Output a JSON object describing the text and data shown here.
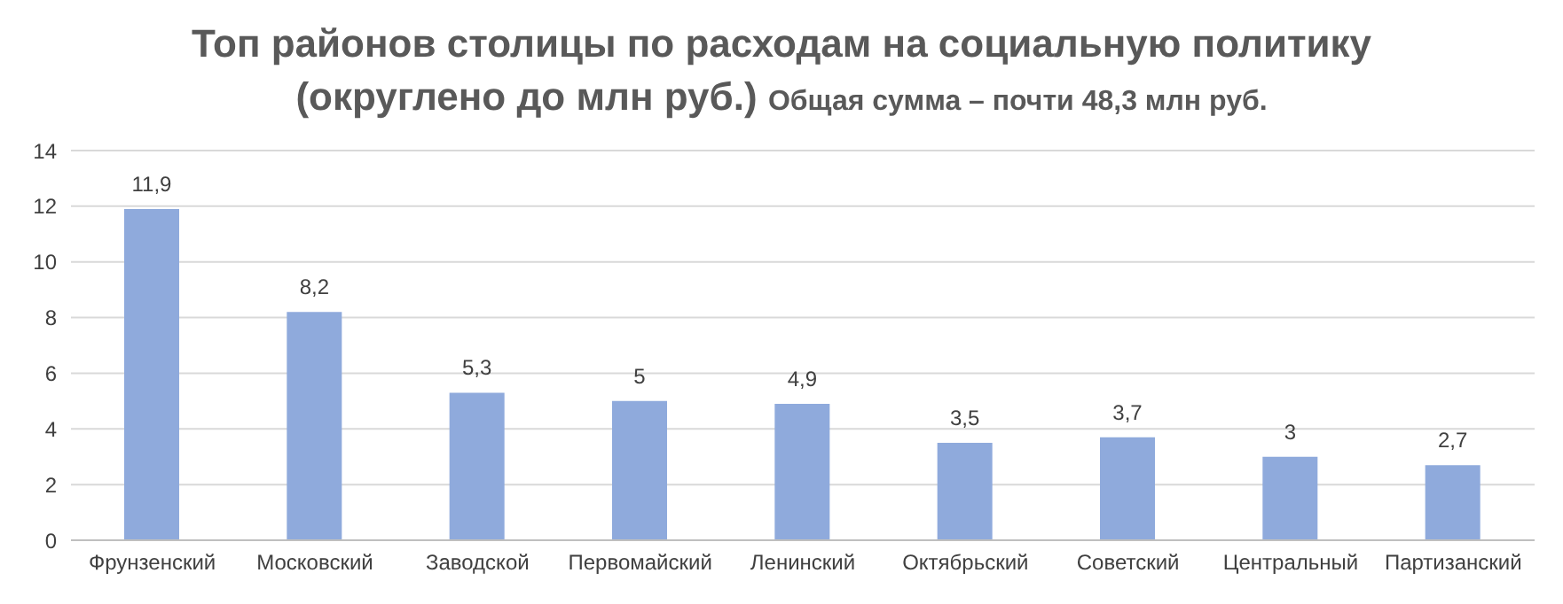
{
  "chart_data": {
    "type": "bar",
    "title": "Топ районов столицы по расходам на социальную политику (округлено до млн руб.)",
    "subtitle": "Общая сумма – почти 48,3 млн руб.",
    "categories": [
      "Фрунзенский",
      "Московский",
      "Заводской",
      "Первомайский",
      "Ленинский",
      "Октябрьский",
      "Советский",
      "Центральный",
      "Партизанский"
    ],
    "values": [
      11.9,
      8.2,
      5.3,
      5,
      4.9,
      3.5,
      3.7,
      3,
      2.7
    ],
    "value_labels": [
      "11,9",
      "8,2",
      "5,3",
      "5",
      "4,9",
      "3,5",
      "3,7",
      "3",
      "2,7"
    ],
    "color": "#8faadc",
    "ylim": [
      0,
      14
    ],
    "yticks": [
      0,
      2,
      4,
      6,
      8,
      10,
      12,
      14
    ],
    "grid": "y"
  }
}
